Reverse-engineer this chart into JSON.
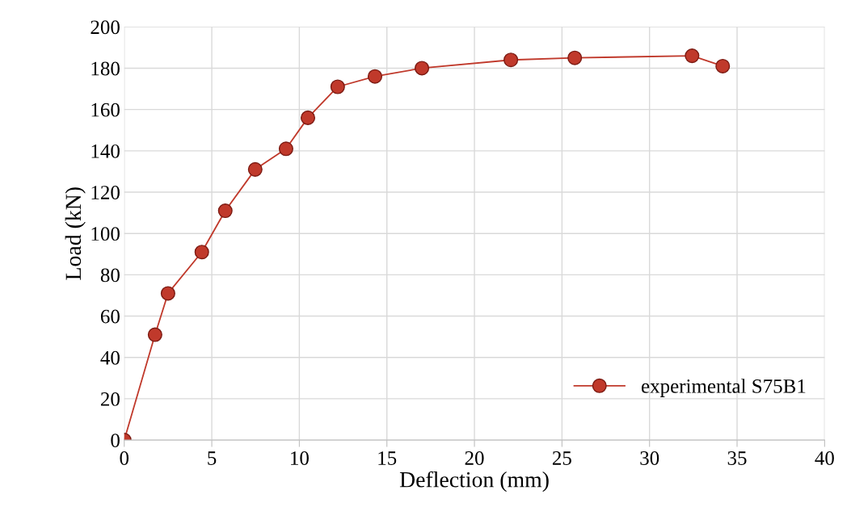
{
  "chart_data": {
    "type": "line",
    "xlabel": "Deflection (mm)",
    "ylabel": "Load (kN)",
    "x": [
      0,
      1.76,
      2.5,
      4.43,
      5.77,
      7.48,
      9.24,
      10.49,
      12.19,
      14.32,
      17.0,
      22.08,
      25.73,
      32.43,
      34.18
    ],
    "series": [
      {
        "name": "experimental S75B1",
        "color": "#c0392b",
        "values": [
          0,
          51,
          71,
          91,
          111,
          131,
          141,
          156,
          171,
          176,
          180,
          184,
          185,
          186,
          181
        ]
      }
    ],
    "xlim": [
      0,
      40
    ],
    "xticks": [
      0,
      5,
      10,
      15,
      20,
      25,
      30,
      35,
      40
    ],
    "ylim": [
      0,
      200
    ],
    "yticks": [
      0,
      20,
      40,
      60,
      80,
      100,
      120,
      140,
      160,
      180,
      200
    ],
    "grid": true,
    "legend": "bottom right",
    "marker": "circle",
    "line_style": "solid"
  }
}
